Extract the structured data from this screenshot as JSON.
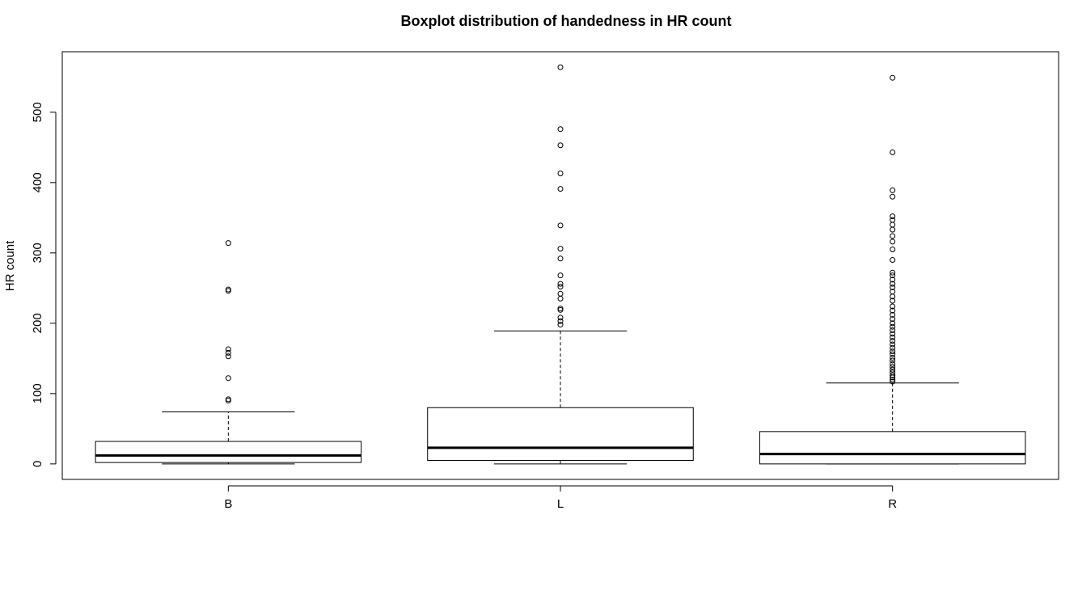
{
  "chart_data": {
    "type": "boxplot",
    "title": "Boxplot distribution of handedness in HR count",
    "xlabel": "",
    "ylabel": "HR count",
    "categories": [
      "B",
      "L",
      "R"
    ],
    "ylim": [
      -22,
      586
    ],
    "y_ticks": [
      0,
      100,
      200,
      300,
      400,
      500
    ],
    "grid": false,
    "boxes": [
      {
        "category": "B",
        "whisker_low": 0,
        "q1": 2,
        "median": 12,
        "q3": 32,
        "whisker_high": 74,
        "outliers": [
          90,
          92,
          122,
          153,
          158,
          163,
          246,
          248,
          314
        ]
      },
      {
        "category": "L",
        "whisker_low": 0,
        "q1": 5,
        "median": 23,
        "q3": 80,
        "whisker_high": 189,
        "outliers": [
          198,
          203,
          208,
          219,
          221,
          235,
          242,
          252,
          256,
          268,
          292,
          306,
          339,
          391,
          413,
          453,
          476,
          564
        ]
      },
      {
        "category": "R",
        "whisker_low": 0,
        "q1": 0,
        "median": 14,
        "q3": 46,
        "whisker_high": 115,
        "outliers": [
          117,
          120,
          123,
          126,
          130,
          134,
          138,
          142,
          147,
          151,
          156,
          160,
          165,
          170,
          175,
          180,
          185,
          190,
          195,
          200,
          206,
          212,
          218,
          224,
          232,
          238,
          245,
          251,
          256,
          262,
          268,
          272,
          290,
          305,
          316,
          324,
          333,
          340,
          347,
          352,
          380,
          389,
          443,
          549
        ]
      }
    ]
  }
}
